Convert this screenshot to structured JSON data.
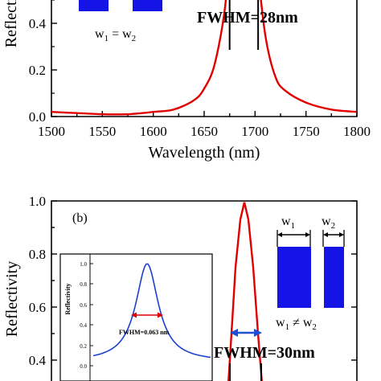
{
  "chart_data": [
    {
      "type": "line",
      "panel": "top",
      "ylabel": "Reflectivity",
      "xlabel": "Wavelength (nm)",
      "xlim": [
        1500,
        1800
      ],
      "ylim": [
        0.0,
        1.0
      ],
      "x_ticks": [
        "1500",
        "1550",
        "1600",
        "1650",
        "1700",
        "1750",
        "1800"
      ],
      "y_ticks": [
        "0.0",
        "0.2",
        "0.4"
      ],
      "series": [
        {
          "color": "#e00000",
          "x": [
            1500,
            1525,
            1550,
            1575,
            1600,
            1620,
            1640,
            1650,
            1660,
            1670,
            1675,
            1680,
            1685,
            1690,
            1700,
            1710,
            1720,
            1730,
            1750,
            1775,
            1800
          ],
          "y": [
            0.02,
            0.015,
            0.01,
            0.01,
            0.02,
            0.03,
            0.07,
            0.12,
            0.22,
            0.45,
            0.7,
            0.86,
            0.95,
            1.0,
            0.72,
            0.35,
            0.17,
            0.11,
            0.06,
            0.03,
            0.02
          ]
        }
      ],
      "annotations": {
        "fwhm_label": "FWHM=28nm",
        "fwhm_markers_x": [
          1675,
          1703
        ],
        "width_label": "w",
        "width_sub_1": "1",
        "width_eq": "=",
        "width_sub_2": "2"
      }
    },
    {
      "type": "line",
      "panel": "bottom",
      "panel_label": "(b)",
      "ylabel": "Reflectivity",
      "ylim": [
        0.3,
        1.0
      ],
      "y_ticks": [
        "1.0",
        "0.8",
        "0.6",
        "0.4"
      ],
      "annotations": {
        "fwhm_label": "FWHM=30nm",
        "width_label": "w",
        "width_sub_1": "1",
        "width_sub_2": "2",
        "width_neq": "≠"
      },
      "inset": {
        "ylabel": "Reflectivity",
        "y_ticks": [
          "1.0",
          "0.8",
          "0.6",
          "0.4",
          "0.2",
          "0.0"
        ],
        "fwhm_label": "FWHM=0.063 nm",
        "color": "#1a3fd0"
      }
    }
  ],
  "colors": {
    "curve_red": "#e00000",
    "curve_blue": "#1a3fd0",
    "bar_blue": "#1414e6",
    "arrow_blue": "#1f4fd8",
    "arrow_red": "#e00000"
  }
}
